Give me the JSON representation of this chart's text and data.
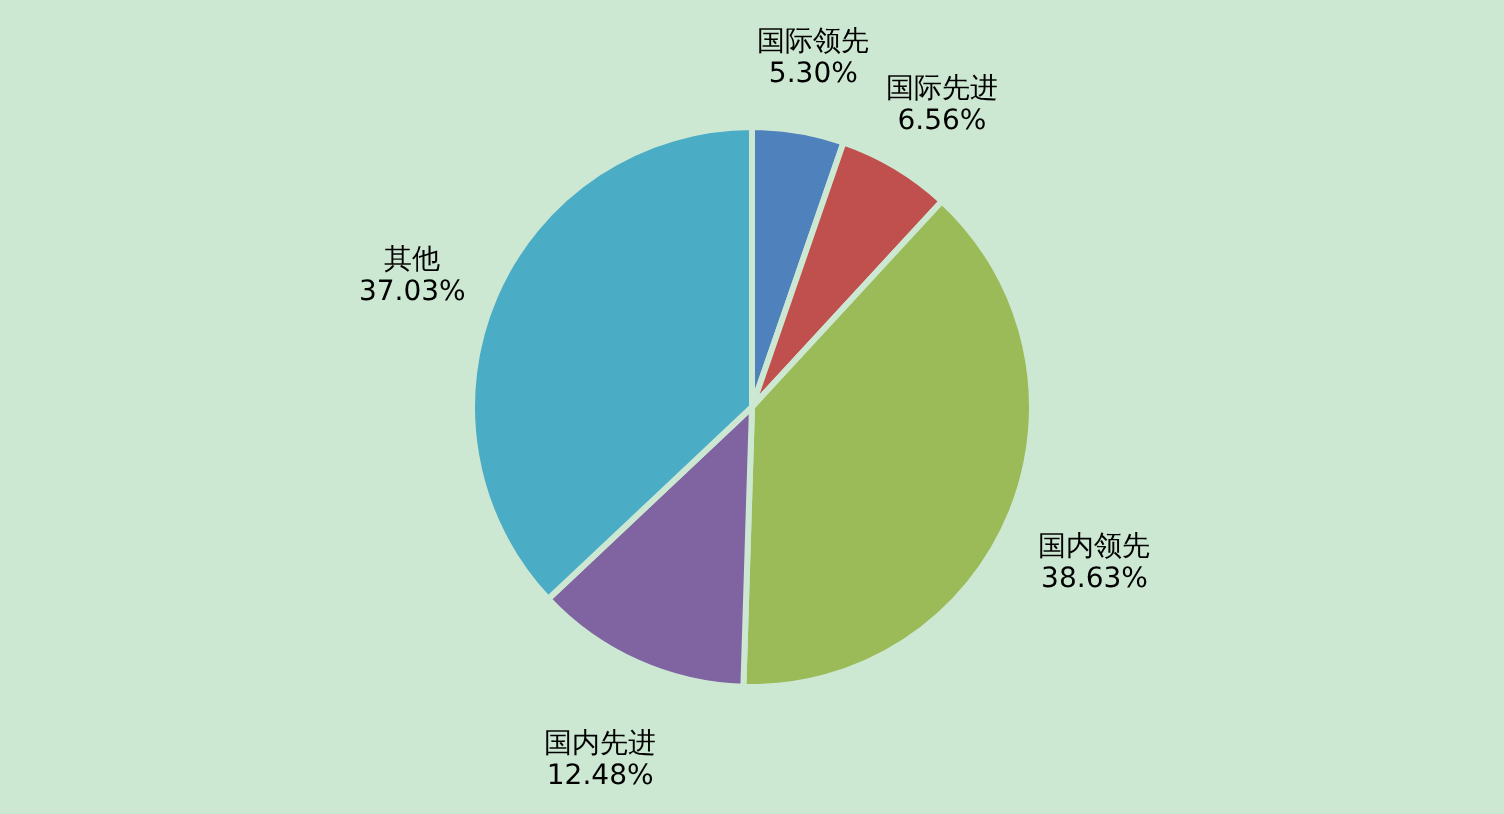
{
  "chart_data": {
    "type": "pie",
    "categories": [
      "国际领先",
      "国际先进",
      "国内领先",
      "国内先进",
      "其他"
    ],
    "values": [
      5.3,
      6.56,
      38.63,
      12.48,
      37.03
    ],
    "colors": [
      "#4f81bd",
      "#c0504d",
      "#9bbb59",
      "#8064a2",
      "#4bacc6"
    ],
    "value_labels": [
      "5.30%",
      "6.56%",
      "38.63%",
      "12.48%",
      "37.03%"
    ],
    "legend": false
  }
}
